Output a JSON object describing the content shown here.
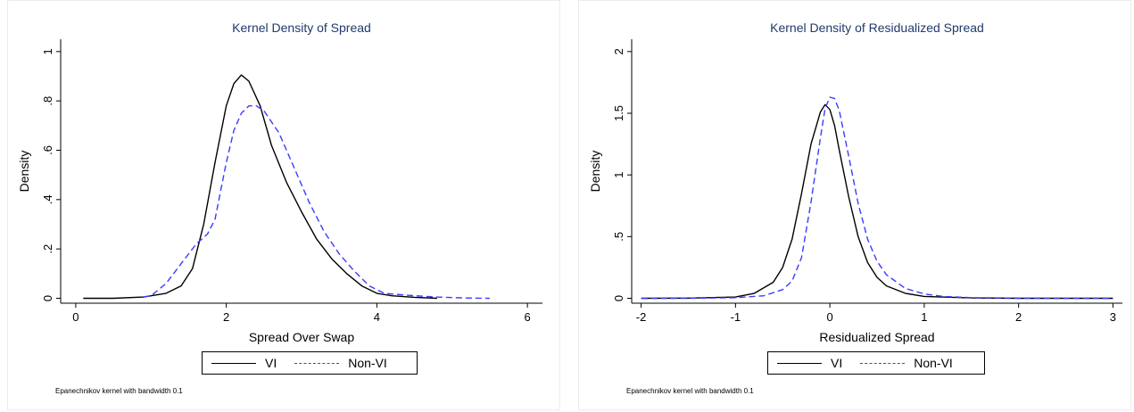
{
  "chart_data": [
    {
      "type": "line",
      "title": "Kernel Density of Spread",
      "xlabel": "Spread Over Swap",
      "ylabel": "Density",
      "xlim": [
        -0.2,
        6.2
      ],
      "ylim": [
        -0.02,
        1.05
      ],
      "xticks": [
        0,
        2,
        4,
        6
      ],
      "xtick_labels": [
        "0",
        "2",
        "4",
        "6"
      ],
      "yticks": [
        0,
        0.2,
        0.4,
        0.6,
        0.8,
        1
      ],
      "ytick_labels": [
        "0",
        ".2",
        ".4",
        ".6",
        ".8",
        "1"
      ],
      "grid": false,
      "legend_position": "bottom",
      "note": "Epanechnikov kernel with bandwidth 0.1",
      "series": [
        {
          "name": "VI",
          "style": "solid",
          "color": "#000000",
          "x": [
            0.1,
            0.5,
            0.9,
            1.0,
            1.2,
            1.4,
            1.55,
            1.7,
            1.85,
            2.0,
            2.1,
            2.2,
            2.3,
            2.45,
            2.6,
            2.8,
            3.0,
            3.2,
            3.4,
            3.6,
            3.8,
            4.0,
            4.2,
            4.5,
            4.8
          ],
          "y": [
            0.0,
            0.0,
            0.005,
            0.01,
            0.02,
            0.05,
            0.12,
            0.3,
            0.55,
            0.78,
            0.87,
            0.905,
            0.88,
            0.78,
            0.62,
            0.47,
            0.35,
            0.24,
            0.16,
            0.1,
            0.05,
            0.02,
            0.01,
            0.004,
            0.0
          ]
        },
        {
          "name": "Non-VI",
          "style": "dashed",
          "color": "#3b3bff",
          "x": [
            0.9,
            1.0,
            1.2,
            1.4,
            1.6,
            1.75,
            1.85,
            2.0,
            2.1,
            2.2,
            2.3,
            2.4,
            2.5,
            2.7,
            2.9,
            3.1,
            3.3,
            3.5,
            3.7,
            3.9,
            4.1,
            4.4,
            4.8,
            5.2,
            5.5
          ],
          "y": [
            0.005,
            0.01,
            0.06,
            0.14,
            0.22,
            0.26,
            0.32,
            0.55,
            0.68,
            0.75,
            0.78,
            0.78,
            0.76,
            0.67,
            0.53,
            0.39,
            0.27,
            0.18,
            0.11,
            0.05,
            0.02,
            0.012,
            0.005,
            0.001,
            0.0
          ]
        }
      ]
    },
    {
      "type": "line",
      "title": "Kernel Density of Residualized Spread",
      "xlabel": "Residualized Spread",
      "ylabel": "Density",
      "xlim": [
        -2.1,
        3.1
      ],
      "ylim": [
        -0.04,
        2.1
      ],
      "xticks": [
        -2,
        -1,
        0,
        1,
        2,
        3
      ],
      "xtick_labels": [
        "-2",
        "-1",
        "0",
        "1",
        "2",
        "3"
      ],
      "yticks": [
        0,
        0.5,
        1,
        1.5,
        2
      ],
      "ytick_labels": [
        "0",
        ".5",
        "1",
        "1.5",
        "2"
      ],
      "grid": false,
      "legend_position": "bottom",
      "note": "Epanechnikov kernel with bandwidth 0.1",
      "series": [
        {
          "name": "VI",
          "style": "solid",
          "color": "#000000",
          "x": [
            -2.0,
            -1.5,
            -1.0,
            -0.8,
            -0.6,
            -0.5,
            -0.4,
            -0.3,
            -0.2,
            -0.1,
            -0.05,
            0.0,
            0.05,
            0.1,
            0.2,
            0.3,
            0.4,
            0.5,
            0.6,
            0.8,
            1.0,
            1.5,
            2.0,
            3.0
          ],
          "y": [
            0.0,
            0.001,
            0.01,
            0.04,
            0.13,
            0.25,
            0.48,
            0.85,
            1.25,
            1.51,
            1.57,
            1.53,
            1.4,
            1.2,
            0.82,
            0.5,
            0.29,
            0.17,
            0.1,
            0.04,
            0.015,
            0.003,
            0.0,
            0.0
          ]
        },
        {
          "name": "Non-VI",
          "style": "dashed",
          "color": "#3b3bff",
          "x": [
            -2.0,
            -1.5,
            -1.0,
            -0.7,
            -0.5,
            -0.4,
            -0.3,
            -0.2,
            -0.1,
            -0.05,
            0.0,
            0.05,
            0.1,
            0.2,
            0.3,
            0.4,
            0.5,
            0.6,
            0.8,
            1.0,
            1.2,
            1.5,
            2.0,
            3.0
          ],
          "y": [
            0.0,
            0.0,
            0.005,
            0.02,
            0.07,
            0.14,
            0.33,
            0.78,
            1.3,
            1.54,
            1.63,
            1.62,
            1.52,
            1.15,
            0.77,
            0.48,
            0.3,
            0.19,
            0.08,
            0.035,
            0.015,
            0.005,
            0.001,
            0.0
          ]
        }
      ]
    }
  ]
}
